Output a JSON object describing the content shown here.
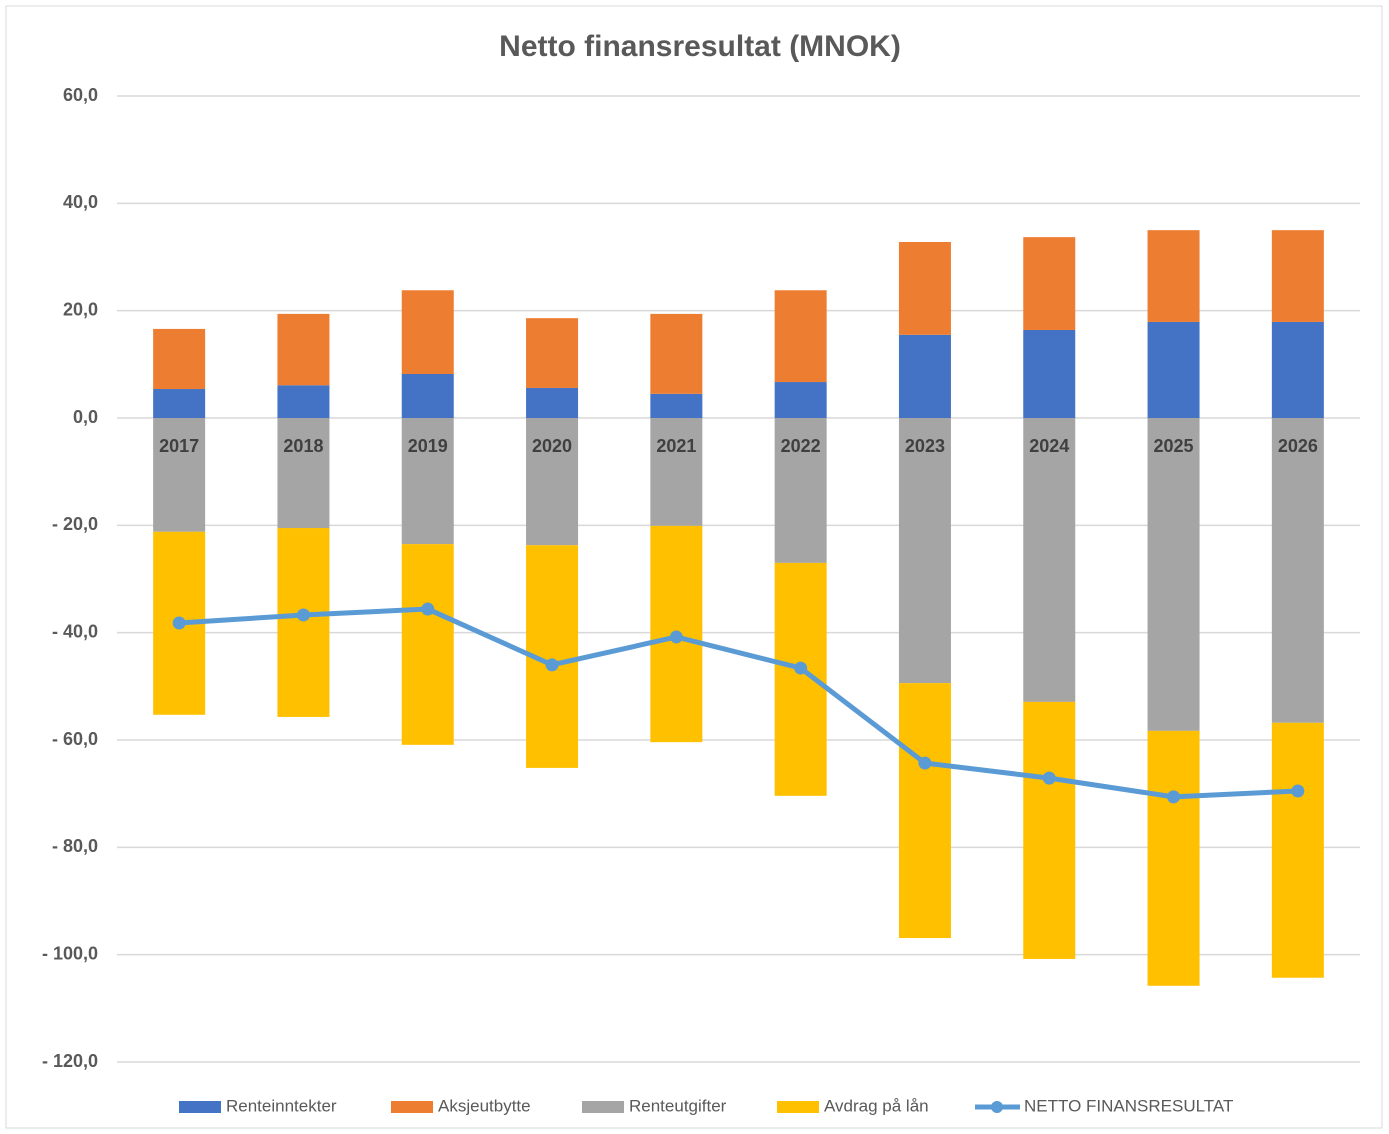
{
  "chart_data": {
    "type": "stacked-bar-line",
    "title": "Netto finansresultat (MNOK)",
    "categories": [
      "2017",
      "2018",
      "2019",
      "2020",
      "2021",
      "2022",
      "2023",
      "2024",
      "2025",
      "2026"
    ],
    "series": [
      {
        "name": "Renteinntekter",
        "color": "#4472c4",
        "type": "bar",
        "values": [
          5.4,
          6.1,
          8.2,
          5.6,
          4.5,
          6.7,
          15.5,
          16.4,
          17.9,
          17.9
        ]
      },
      {
        "name": "Aksjeutbytte",
        "color": "#ed7d31",
        "type": "bar",
        "values": [
          11.2,
          13.3,
          15.6,
          13.0,
          14.9,
          17.1,
          17.3,
          17.3,
          17.1,
          17.1
        ]
      },
      {
        "name": "Renteutgifter",
        "color": "#a5a5a5",
        "type": "bar",
        "values": [
          -21.2,
          -20.5,
          -23.5,
          -23.7,
          -20.1,
          -27.0,
          -49.4,
          -52.9,
          -58.3,
          -56.8
        ]
      },
      {
        "name": "Avdrag på lån",
        "color": "#ffc000",
        "type": "bar",
        "values": [
          -34.1,
          -35.2,
          -37.4,
          -41.5,
          -40.3,
          -43.4,
          -47.5,
          -47.9,
          -47.5,
          -47.5
        ]
      },
      {
        "name": "NETTO FINANSRESULTAT",
        "color": "#5b9bd5",
        "type": "line",
        "values": [
          -38.2,
          -36.7,
          -35.6,
          -46.0,
          -40.8,
          -46.6,
          -64.3,
          -67.1,
          -70.6,
          -69.5
        ]
      }
    ],
    "ylim": [
      -120,
      60
    ],
    "yticks": [
      {
        "value": -120,
        "label": "- 120,0"
      },
      {
        "value": -100,
        "label": "- 100,0"
      },
      {
        "value": -80,
        "label": "- 80,0"
      },
      {
        "value": -60,
        "label": "- 60,0"
      },
      {
        "value": -40,
        "label": "- 40,0"
      },
      {
        "value": -20,
        "label": "- 20,0"
      },
      {
        "value": 0,
        "label": "0,0"
      },
      {
        "value": 20,
        "label": "20,0"
      },
      {
        "value": 40,
        "label": "40,0"
      },
      {
        "value": 60,
        "label": "60,0"
      }
    ],
    "grid": true,
    "legend": "bottom"
  }
}
